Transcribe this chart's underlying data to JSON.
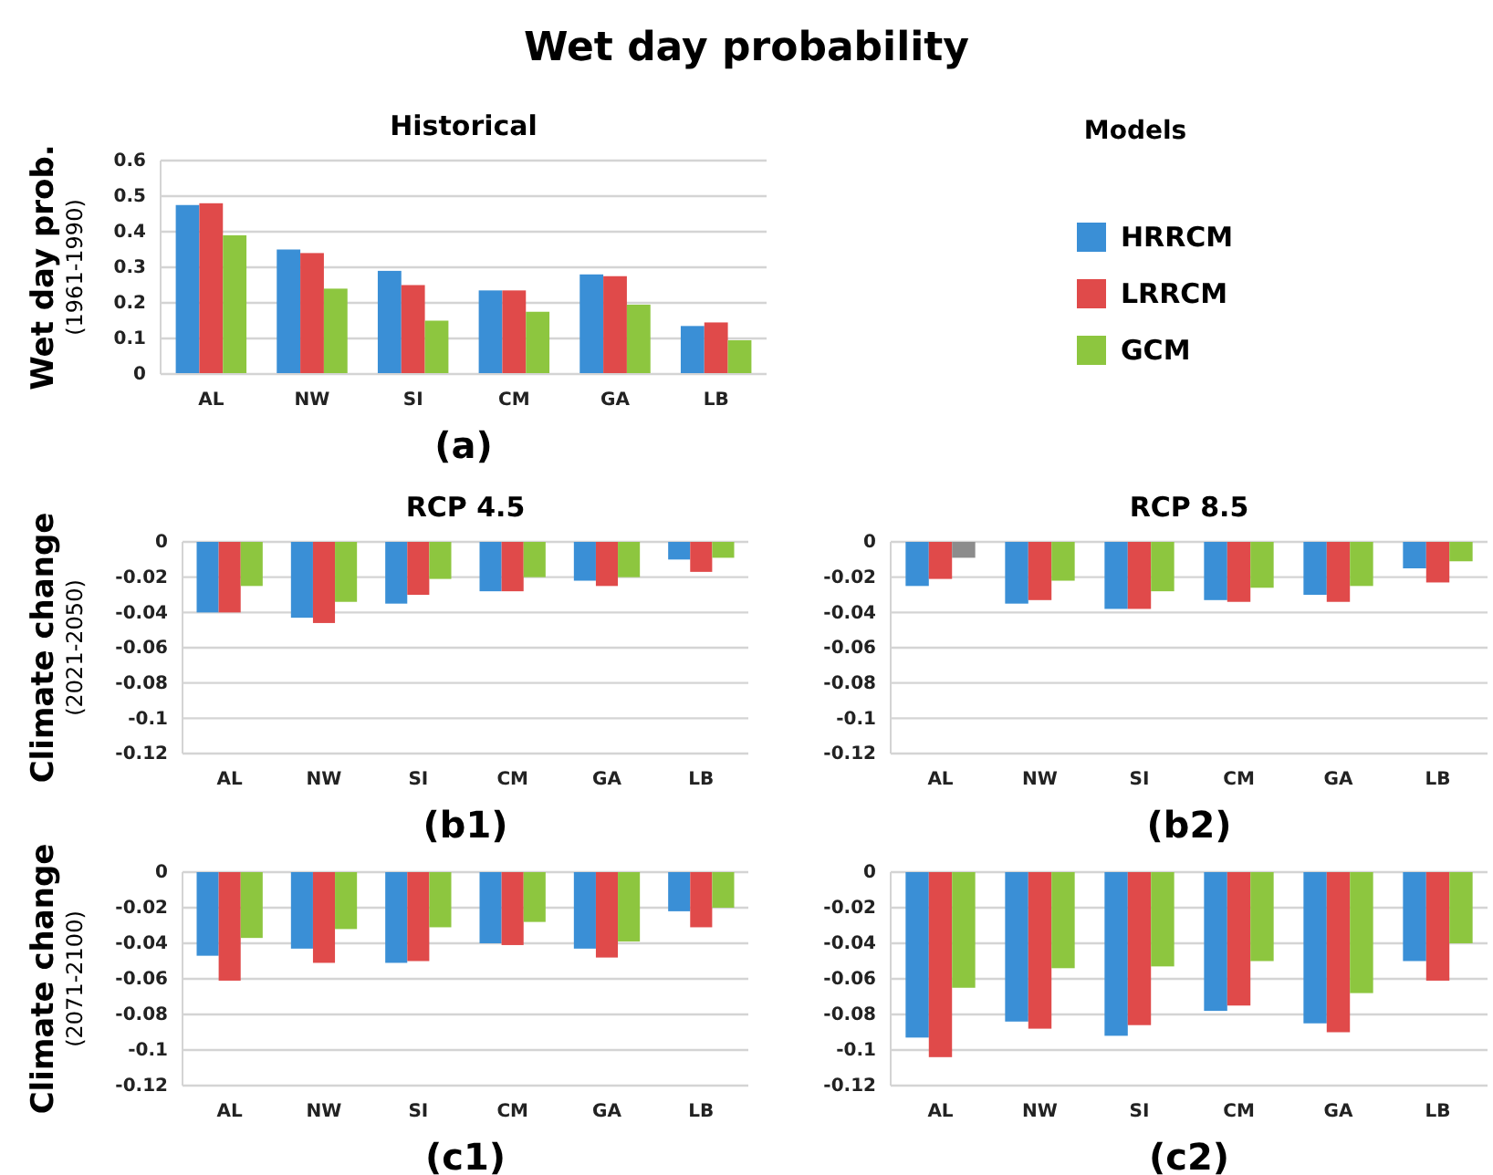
{
  "chart_data": [
    {
      "type": "bar",
      "title": "Wet day probability",
      "subtitle": "Historical",
      "ylabel": "Wet day prob.\n(1961-1990)",
      "legend_title": "Models",
      "legend": "right",
      "grid": "y",
      "categories": [
        "AL",
        "NW",
        "SI",
        "CM",
        "GA",
        "LB"
      ],
      "ylim": [
        0,
        0.6
      ],
      "yticks": [
        0,
        0.1,
        0.2,
        0.3,
        0.4,
        0.5,
        0.6
      ],
      "annotations": [
        "(a)"
      ],
      "series": [
        {
          "name": "HRRCM",
          "color": "#3a8fd6",
          "values": [
            0.475,
            0.35,
            0.29,
            0.235,
            0.28,
            0.135
          ]
        },
        {
          "name": "LRRCM",
          "color": "#e04a4a",
          "values": [
            0.48,
            0.34,
            0.25,
            0.235,
            0.275,
            0.145
          ]
        },
        {
          "name": "GCM",
          "color": "#8dc63f",
          "values": [
            0.39,
            0.24,
            0.15,
            0.175,
            0.195,
            0.095
          ]
        }
      ]
    },
    {
      "type": "bar",
      "title": "RCP 4.5",
      "ylabel": "Climate change\n(2021-2050)",
      "grid": "y",
      "categories": [
        "AL",
        "NW",
        "SI",
        "CM",
        "GA",
        "LB"
      ],
      "ylim": [
        -0.12,
        0
      ],
      "yticks": [
        -0.12,
        -0.1,
        -0.08,
        -0.06,
        -0.04,
        -0.02,
        0
      ],
      "annotations": [
        "(b1)"
      ],
      "series": [
        {
          "color": "#3a8fd6",
          "values": [
            -0.04,
            -0.043,
            -0.035,
            -0.028,
            -0.022,
            -0.01
          ]
        },
        {
          "color": "#e04a4a",
          "values": [
            -0.04,
            -0.046,
            -0.03,
            -0.028,
            -0.025,
            -0.017
          ]
        },
        {
          "color": "#8dc63f",
          "values": [
            -0.025,
            -0.034,
            -0.021,
            -0.02,
            -0.02,
            -0.009
          ]
        }
      ]
    },
    {
      "type": "bar",
      "title": "RCP 8.5",
      "grid": "y",
      "categories": [
        "AL",
        "NW",
        "SI",
        "CM",
        "GA",
        "LB"
      ],
      "ylim": [
        -0.12,
        0
      ],
      "yticks": [
        -0.12,
        -0.1,
        -0.08,
        -0.06,
        -0.04,
        -0.02,
        0
      ],
      "annotations": [
        "(b2)"
      ],
      "series": [
        {
          "color": "#3a8fd6",
          "values": [
            -0.025,
            -0.035,
            -0.038,
            -0.033,
            -0.03,
            -0.015
          ]
        },
        {
          "color": "#e04a4a",
          "values": [
            -0.021,
            -0.033,
            -0.038,
            -0.034,
            -0.034,
            -0.023
          ]
        },
        {
          "color": "#8dc63f",
          "colors": [
            "#8c8c8c",
            null,
            null,
            null,
            null,
            null
          ],
          "values": [
            -0.009,
            -0.022,
            -0.028,
            -0.026,
            -0.025,
            -0.011
          ]
        }
      ]
    },
    {
      "type": "bar",
      "ylabel": "Climate change\n(2071-2100)",
      "grid": "y",
      "categories": [
        "AL",
        "NW",
        "SI",
        "CM",
        "GA",
        "LB"
      ],
      "ylim": [
        -0.12,
        0
      ],
      "yticks": [
        -0.12,
        -0.1,
        -0.08,
        -0.06,
        -0.04,
        -0.02,
        0
      ],
      "annotations": [
        "(c1)"
      ],
      "series": [
        {
          "color": "#3a8fd6",
          "values": [
            -0.047,
            -0.043,
            -0.051,
            -0.04,
            -0.043,
            -0.022
          ]
        },
        {
          "color": "#e04a4a",
          "values": [
            -0.061,
            -0.051,
            -0.05,
            -0.041,
            -0.048,
            -0.031
          ]
        },
        {
          "color": "#8dc63f",
          "values": [
            -0.037,
            -0.032,
            -0.031,
            -0.028,
            -0.039,
            -0.02
          ]
        }
      ]
    },
    {
      "type": "bar",
      "grid": "y",
      "categories": [
        "AL",
        "NW",
        "SI",
        "CM",
        "GA",
        "LB"
      ],
      "ylim": [
        -0.12,
        0
      ],
      "yticks": [
        -0.12,
        -0.1,
        -0.08,
        -0.06,
        -0.04,
        -0.02,
        0
      ],
      "annotations": [
        "(c2)"
      ],
      "series": [
        {
          "color": "#3a8fd6",
          "values": [
            -0.093,
            -0.084,
            -0.092,
            -0.078,
            -0.085,
            -0.05
          ]
        },
        {
          "color": "#e04a4a",
          "values": [
            -0.104,
            -0.088,
            -0.086,
            -0.075,
            -0.09,
            -0.061
          ]
        },
        {
          "color": "#8dc63f",
          "values": [
            -0.065,
            -0.054,
            -0.053,
            -0.05,
            -0.068,
            -0.04
          ]
        }
      ]
    }
  ]
}
